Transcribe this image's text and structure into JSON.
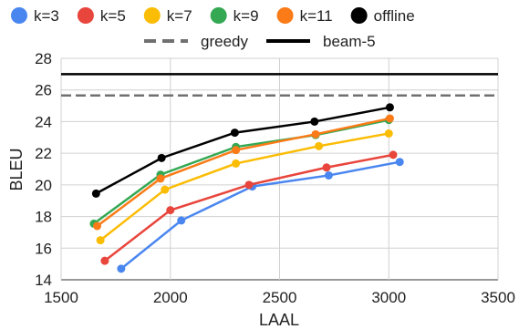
{
  "chart_data": {
    "type": "line",
    "title": "",
    "xlabel": "LAAL",
    "ylabel": "BLEU",
    "xlim": [
      1500,
      3500
    ],
    "ylim": [
      14,
      28
    ],
    "xticks": [
      1500,
      2000,
      2500,
      3000,
      3500
    ],
    "yticks": [
      14,
      16,
      18,
      20,
      22,
      24,
      26,
      28
    ],
    "grid": true,
    "legend_position": "top",
    "series": [
      {
        "name": "k=3",
        "color": "#4a86f0",
        "points": [
          [
            1775,
            14.7
          ],
          [
            2050,
            17.75
          ],
          [
            2375,
            19.9
          ],
          [
            2725,
            20.6
          ],
          [
            3050,
            21.45
          ]
        ]
      },
      {
        "name": "k=5",
        "color": "#e8453c",
        "points": [
          [
            1700,
            15.2
          ],
          [
            2000,
            18.4
          ],
          [
            2360,
            20.0
          ],
          [
            2715,
            21.1
          ],
          [
            3020,
            21.9
          ]
        ]
      },
      {
        "name": "k=7",
        "color": "#fbbc04",
        "points": [
          [
            1680,
            16.5
          ],
          [
            1975,
            19.7
          ],
          [
            2300,
            21.35
          ],
          [
            2680,
            22.45
          ],
          [
            3000,
            23.25
          ]
        ]
      },
      {
        "name": "k=9",
        "color": "#34a853",
        "points": [
          [
            1650,
            17.55
          ],
          [
            1955,
            20.65
          ],
          [
            2300,
            22.4
          ],
          [
            2665,
            23.15
          ],
          [
            3000,
            24.1
          ]
        ]
      },
      {
        "name": "k=11",
        "color": "#fa7b17",
        "points": [
          [
            1665,
            17.4
          ],
          [
            1955,
            20.4
          ],
          [
            2300,
            22.2
          ],
          [
            2665,
            23.2
          ],
          [
            3005,
            24.2
          ]
        ]
      },
      {
        "name": "offline",
        "color": "#000000",
        "points": [
          [
            1660,
            19.45
          ],
          [
            1960,
            21.7
          ],
          [
            2295,
            23.3
          ],
          [
            2660,
            24.0
          ],
          [
            3005,
            24.9
          ]
        ]
      }
    ],
    "reference_lines": [
      {
        "name": "greedy",
        "value": 25.65,
        "style": "dashed",
        "color": "#707070"
      },
      {
        "name": "beam-5",
        "value": 27.0,
        "style": "solid",
        "color": "#000000"
      }
    ]
  }
}
